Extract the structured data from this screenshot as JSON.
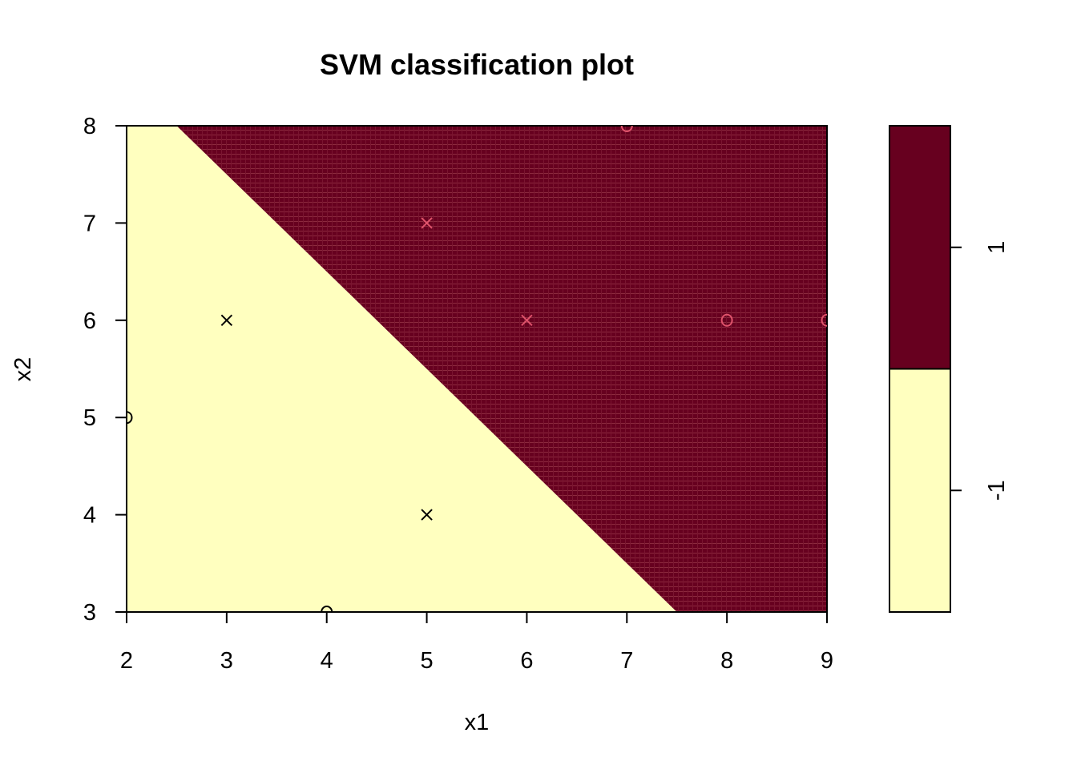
{
  "chart_data": {
    "type": "scatter",
    "title": "SVM classification plot",
    "xlabel": "x1",
    "ylabel": "x2",
    "xlim": [
      2,
      9
    ],
    "ylim": [
      3,
      8
    ],
    "x_ticks": [
      "2",
      "3",
      "4",
      "5",
      "6",
      "7",
      "8",
      "9"
    ],
    "y_ticks": [
      "3",
      "4",
      "5",
      "6",
      "7",
      "8"
    ],
    "decision_boundary": {
      "line": [
        [
          2.5,
          8
        ],
        [
          7.5,
          3
        ]
      ],
      "region_above": "1",
      "region_below": "-1"
    },
    "points": [
      {
        "x": 3,
        "y": 6,
        "marker": "x",
        "class": "-1"
      },
      {
        "x": 2,
        "y": 5,
        "marker": "o",
        "class": "-1"
      },
      {
        "x": 5,
        "y": 4,
        "marker": "x",
        "class": "-1"
      },
      {
        "x": 4,
        "y": 3,
        "marker": "o",
        "class": "-1"
      },
      {
        "x": 5,
        "y": 7,
        "marker": "x",
        "class": "1"
      },
      {
        "x": 6,
        "y": 6,
        "marker": "x",
        "class": "1"
      },
      {
        "x": 7,
        "y": 8,
        "marker": "o",
        "class": "1"
      },
      {
        "x": 8,
        "y": 6,
        "marker": "o",
        "class": "1"
      },
      {
        "x": 9,
        "y": 6,
        "marker": "o",
        "class": "1"
      }
    ],
    "legend": {
      "placement": "right",
      "levels": [
        {
          "label": "1",
          "color": "#67001F"
        },
        {
          "label": "-1",
          "color": "#FFFFBF"
        }
      ]
    },
    "colors": {
      "class_neg_region": "#FFFFBF",
      "class_pos_region": "#67001F",
      "class_pos_stripe": "#8C2A3E",
      "marker_neg": "#000000",
      "marker_pos": "#DF536B"
    },
    "grid": false
  }
}
